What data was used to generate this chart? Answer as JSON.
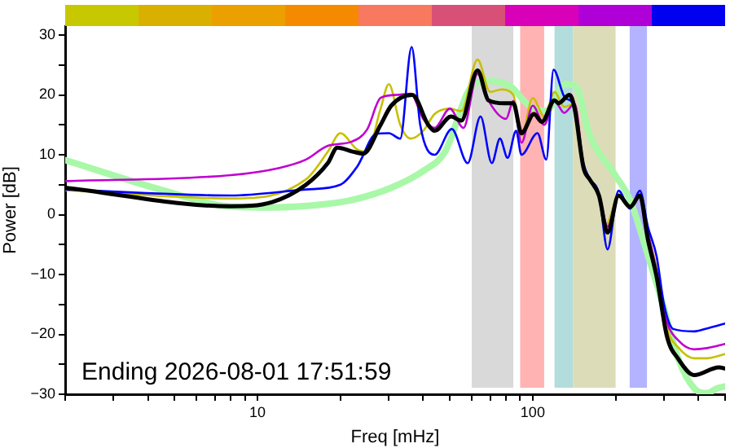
{
  "chart_data": {
    "type": "line",
    "xlabel": "Freq [mHz]",
    "ylabel": "Power [dB]",
    "log": "x",
    "xlim": [
      2,
      500
    ],
    "xticks": [
      {
        "value": 2,
        "label": null
      },
      {
        "value": 3,
        "label": null
      },
      {
        "value": 4,
        "label": null
      },
      {
        "value": 5,
        "label": null
      },
      {
        "value": 6,
        "label": null
      },
      {
        "value": 7,
        "label": null
      },
      {
        "value": 8,
        "label": null
      },
      {
        "value": 9,
        "label": null
      },
      10,
      {
        "value": 20,
        "label": null
      },
      {
        "value": 30,
        "label": null
      },
      {
        "value": 40,
        "label": null
      },
      {
        "value": 50,
        "label": null
      },
      {
        "value": 60,
        "label": null
      },
      {
        "value": 70,
        "label": null
      },
      {
        "value": 80,
        "label": null
      },
      {
        "value": 90,
        "label": null
      },
      100,
      {
        "value": 200,
        "label": null
      },
      {
        "value": 300,
        "label": null
      },
      {
        "value": 400,
        "label": null
      },
      {
        "value": 500,
        "label": null
      }
    ],
    "ylim": [
      -30,
      31.5
    ],
    "yticks": [
      {
        "value": -30,
        "label": "−30"
      },
      {
        "value": -25,
        "label": null
      },
      {
        "value": -20,
        "label": "−20"
      },
      {
        "value": -15,
        "label": null
      },
      {
        "value": -10,
        "label": "−10"
      },
      {
        "value": -5,
        "label": null
      },
      0,
      {
        "value": 5,
        "label": null
      },
      10,
      {
        "value": 15,
        "label": null
      },
      20,
      {
        "value": 25,
        "label": null
      },
      30
    ],
    "grid": false,
    "legend": false,
    "marker": "none",
    "line_style": "solid",
    "bands": [
      {
        "axis": "x",
        "from": 60,
        "to": 85,
        "color": "#d9d9d9"
      },
      {
        "axis": "x",
        "from": 90,
        "to": 110,
        "color": "#ffb3b3"
      },
      {
        "axis": "x",
        "from": 120,
        "to": 140,
        "color": "#b3dcdc"
      },
      {
        "axis": "x",
        "from": 140,
        "to": 200,
        "color": "#dcdcb8"
      },
      {
        "axis": "x",
        "from": 225,
        "to": 260,
        "color": "#b3b3ff"
      }
    ],
    "annotations": [
      "Ending 2026-08-01 17:51:59"
    ],
    "series": [
      {
        "color": "#a8f8a8",
        "x": [
          2,
          4.5,
          7.8,
          11.3,
          18,
          22.3,
          30.6,
          40,
          48,
          60,
          69,
          83,
          97,
          112,
          131,
          143,
          161,
          198,
          226,
          258,
          297,
          338,
          386,
          430,
          468,
          500
        ],
        "values": [
          9.1,
          4.1,
          1.4,
          1.2,
          1.8,
          2.5,
          4.5,
          7.3,
          10.5,
          21.4,
          22.3,
          21.4,
          18.2,
          17.3,
          21.8,
          21.5,
          13.3,
          6.8,
          2.4,
          -5.8,
          -15,
          -24.1,
          -29,
          -29.8,
          -29,
          -28.7
        ]
      },
      {
        "color": "#c8c000",
        "x": [
          2,
          8,
          15,
          18,
          20,
          23,
          25,
          28,
          30,
          33,
          36,
          40,
          44,
          50,
          55,
          63,
          70,
          77,
          85,
          91,
          100,
          110,
          120,
          130,
          142,
          153,
          161,
          174,
          184,
          205,
          226,
          245,
          262,
          282,
          308,
          338,
          386,
          430,
          500
        ],
        "values": [
          4.1,
          2.7,
          5.9,
          10.5,
          13.6,
          10.9,
          10.5,
          17.7,
          21.8,
          15,
          12.7,
          14,
          16.8,
          17.7,
          17.3,
          25.9,
          20.5,
          20.9,
          20,
          13.2,
          19.5,
          16.4,
          20.5,
          18,
          18.5,
          8,
          6,
          3,
          -1.8,
          3,
          1,
          3,
          -3,
          -9,
          -19,
          -22.2,
          -24,
          -24,
          -23.3
        ]
      },
      {
        "color": "#c000d0",
        "x": [
          2,
          8,
          12,
          15,
          18,
          22,
          25,
          28,
          32,
          36,
          40,
          44,
          50,
          56,
          63,
          70,
          80,
          85,
          91,
          100,
          110,
          120,
          130,
          142,
          153,
          161,
          174,
          187,
          205,
          226,
          245,
          262,
          282,
          308,
          338,
          386,
          430,
          500
        ],
        "values": [
          5.6,
          6.6,
          7.8,
          9.2,
          11.5,
          12.2,
          14.2,
          19.5,
          20,
          20.2,
          16,
          14.5,
          17.7,
          14.5,
          23.5,
          18.6,
          16,
          19,
          12,
          18.2,
          15,
          19,
          17,
          18.5,
          8,
          6,
          3.5,
          -2,
          3,
          1.5,
          3,
          -3,
          -9.5,
          -18,
          -21,
          -22.5,
          -22.3,
          -21.6
        ]
      },
      {
        "color": "#0000ff",
        "x": [
          2,
          8,
          15,
          20,
          23,
          27,
          30,
          33,
          36.3,
          39,
          44,
          50.8,
          58,
          64.6,
          71,
          76,
          81,
          87,
          91,
          104,
          112,
          119,
          131,
          140,
          153,
          161,
          174,
          187,
          205,
          226,
          245,
          262,
          282,
          300,
          324,
          386,
          430,
          500
        ],
        "values": [
          4.2,
          3.2,
          4.2,
          5,
          8,
          13.5,
          13.6,
          12.7,
          28,
          15,
          10,
          14.3,
          8.6,
          16.4,
          8.6,
          12.7,
          9.5,
          14,
          10,
          13.6,
          9.2,
          24.2,
          19.5,
          18.6,
          8.5,
          6,
          3.5,
          -5.8,
          4,
          1,
          4,
          -2,
          -7,
          -15,
          -19.1,
          -19.5,
          -19,
          -18.2
        ]
      },
      {
        "color": "#000000",
        "x": [
          2,
          8,
          11.3,
          15,
          18,
          19.5,
          22.3,
          24.2,
          28,
          30.6,
          36.5,
          41.7,
          44,
          50.5,
          55,
          63,
          69,
          79,
          85,
          91,
          101,
          108,
          120,
          124,
          136,
          142,
          153,
          161,
          174,
          187,
          205,
          226,
          245,
          262,
          282,
          308,
          338,
          386,
          475,
          500
        ],
        "values": [
          4.5,
          1.4,
          2.1,
          5,
          8.6,
          11.2,
          10.5,
          10.2,
          15,
          18.2,
          20,
          15,
          14,
          16.4,
          15.7,
          24.1,
          19.1,
          18.6,
          18.6,
          13.6,
          16.8,
          15.5,
          19.1,
          18.6,
          20,
          17.7,
          7.8,
          5.9,
          3.2,
          -3,
          3.2,
          1.3,
          3.2,
          -4.1,
          -10.4,
          -20.5,
          -24.1,
          -26.8,
          -25.5,
          -25.7
        ]
      }
    ]
  }
}
